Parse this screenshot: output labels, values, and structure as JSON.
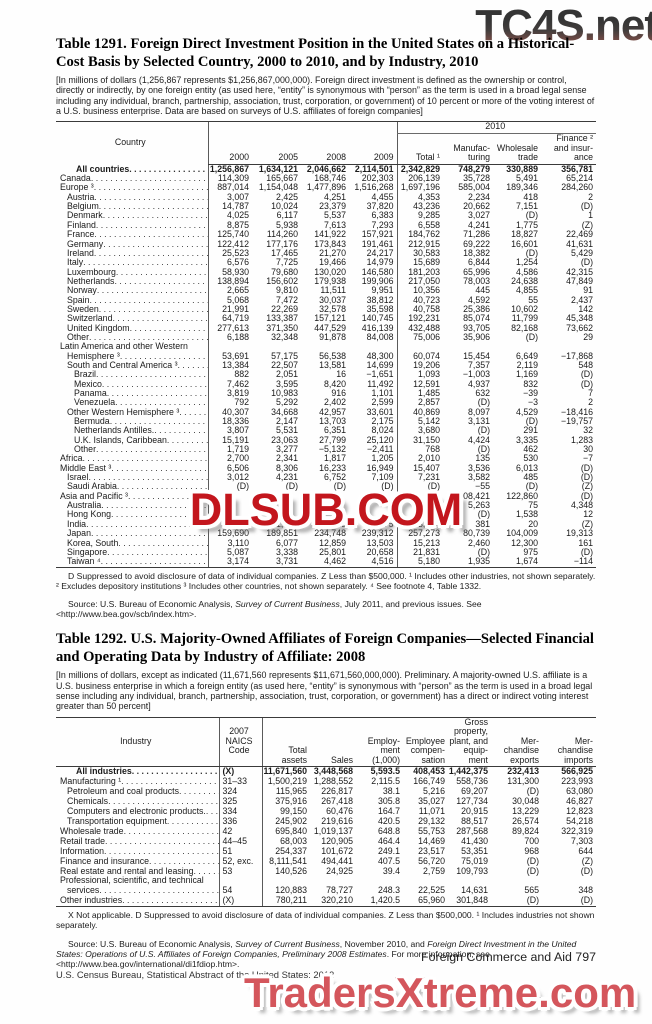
{
  "watermarks": {
    "top": "TC4S.net",
    "middle": "DLSUB.COM",
    "bottom": "TradersXtreme.com"
  },
  "page_footer": {
    "section": "Foreign Commerce and Aid  797",
    "census": "U.S. Census Bureau, Statistical Abstract of the United States: 2012"
  },
  "table1291": {
    "title": "Table 1291. Foreign Direct Investment Position in the United States on a Historical-Cost Basis by Selected Country, 2000 to 2010, and by Industry, 2010",
    "intro": "[In millions of dollars (1,256,867 represents $1,256,867,000,000). Foreign direct investment is defined as the ownership or control, directly or indirectly, by one foreign entity (as used here, “entity” is synonymous with “person” as the term is used in a broad legal sense including any individual, branch, partnership, association, trust, corporation, or government) of 10 percent or more of the voting interest of a U.S. business enterprise. Data are based on surveys of U.S. affiliates of foreign companies]",
    "headers": {
      "country": "Country",
      "group2010": "2010",
      "y2000": "2000",
      "y2005": "2005",
      "y2008": "2008",
      "y2009": "2009",
      "total": "Total ¹",
      "manufacturing": "Manufac-\nturing",
      "wholesale": "Wholesale\ntrade",
      "finance": "Finance ²\nand insur-\nance"
    },
    "rows": [
      {
        "label": "All countries",
        "indent": 1,
        "bold": true,
        "values": [
          "1,256,867",
          "1,634,121",
          "2,046,662",
          "2,114,501",
          "2,342,829",
          "748,279",
          "330,889",
          "356,781"
        ]
      },
      {
        "label": "Canada",
        "indent": 0,
        "values": [
          "114,309",
          "165,667",
          "168,746",
          "202,303",
          "206,139",
          "35,728",
          "5,491",
          "65,214"
        ]
      },
      {
        "label": "Europe ³",
        "indent": 0,
        "values": [
          "887,014",
          "1,154,048",
          "1,477,896",
          "1,516,268",
          "1,697,196",
          "585,004",
          "189,346",
          "284,260"
        ]
      },
      {
        "label": "Austria",
        "indent": 1,
        "values": [
          "3,007",
          "2,425",
          "4,251",
          "4,455",
          "4,353",
          "2,234",
          "418",
          "2"
        ]
      },
      {
        "label": "Belgium",
        "indent": 1,
        "values": [
          "14,787",
          "10,024",
          "23,379",
          "37,820",
          "43,236",
          "20,662",
          "7,151",
          "(D)"
        ]
      },
      {
        "label": "Denmark",
        "indent": 1,
        "values": [
          "4,025",
          "6,117",
          "5,537",
          "6,383",
          "9,285",
          "3,027",
          "(D)",
          "1"
        ]
      },
      {
        "label": "Finland",
        "indent": 1,
        "values": [
          "8,875",
          "5,938",
          "7,613",
          "7,293",
          "6,558",
          "4,241",
          "1,775",
          "(Z)"
        ]
      },
      {
        "label": "France",
        "indent": 1,
        "values": [
          "125,740",
          "114,260",
          "141,922",
          "157,921",
          "184,762",
          "71,286",
          "18,827",
          "22,469"
        ]
      },
      {
        "label": "Germany",
        "indent": 1,
        "values": [
          "122,412",
          "177,176",
          "173,843",
          "191,461",
          "212,915",
          "69,222",
          "16,601",
          "41,631"
        ]
      },
      {
        "label": "Ireland",
        "indent": 1,
        "values": [
          "25,523",
          "17,465",
          "21,270",
          "24,217",
          "30,583",
          "18,382",
          "(D)",
          "5,429"
        ]
      },
      {
        "label": "Italy",
        "indent": 1,
        "values": [
          "6,576",
          "7,725",
          "19,466",
          "14,979",
          "15,689",
          "6,844",
          "1,254",
          "(D)"
        ]
      },
      {
        "label": "Luxembourg",
        "indent": 1,
        "values": [
          "58,930",
          "79,680",
          "130,020",
          "146,580",
          "181,203",
          "65,996",
          "4,586",
          "42,315"
        ]
      },
      {
        "label": "Netherlands",
        "indent": 1,
        "values": [
          "138,894",
          "156,602",
          "179,938",
          "199,906",
          "217,050",
          "78,003",
          "24,638",
          "47,849"
        ]
      },
      {
        "label": "Norway",
        "indent": 1,
        "values": [
          "2,665",
          "9,810",
          "11,511",
          "9,951",
          "10,356",
          "445",
          "4,855",
          "91"
        ]
      },
      {
        "label": "Spain",
        "indent": 1,
        "values": [
          "5,068",
          "7,472",
          "30,037",
          "38,812",
          "40,723",
          "4,592",
          "55",
          "2,437"
        ]
      },
      {
        "label": "Sweden",
        "indent": 1,
        "values": [
          "21,991",
          "22,269",
          "32,578",
          "35,598",
          "40,758",
          "25,386",
          "10,602",
          "142"
        ]
      },
      {
        "label": "Switzerland",
        "indent": 1,
        "values": [
          "64,719",
          "133,387",
          "157,121",
          "140,745",
          "192,231",
          "85,074",
          "11,799",
          "45,348"
        ]
      },
      {
        "label": "United Kingdom",
        "indent": 1,
        "values": [
          "277,613",
          "371,350",
          "447,529",
          "416,139",
          "432,488",
          "93,705",
          "82,168",
          "73,662"
        ]
      },
      {
        "label": "Other",
        "indent": 1,
        "values": [
          "6,188",
          "32,348",
          "91,878",
          "84,008",
          "75,006",
          "35,906",
          "(D)",
          "29"
        ]
      },
      {
        "label": "Latin America and other Western",
        "indent": 0,
        "label_only": true,
        "values": [
          "",
          "",
          "",
          "",
          "",
          "",
          "",
          ""
        ]
      },
      {
        "label": "Hemisphere ³",
        "indent": 1,
        "values": [
          "53,691",
          "57,175",
          "56,538",
          "48,300",
          "60,074",
          "15,454",
          "6,649",
          "−17,868"
        ]
      },
      {
        "label": "South and Central America ³",
        "indent": 1,
        "values": [
          "13,384",
          "22,507",
          "13,581",
          "14,699",
          "19,206",
          "7,357",
          "2,119",
          "548"
        ]
      },
      {
        "label": "Brazil",
        "indent": 2,
        "values": [
          "882",
          "2,051",
          "16",
          "−1,651",
          "1,093",
          "−1,003",
          "1,169",
          "(D)"
        ]
      },
      {
        "label": "Mexico",
        "indent": 2,
        "values": [
          "7,462",
          "3,595",
          "8,420",
          "11,492",
          "12,591",
          "4,937",
          "832",
          "(D)"
        ]
      },
      {
        "label": "Panama",
        "indent": 2,
        "values": [
          "3,819",
          "10,983",
          "916",
          "1,101",
          "1,485",
          "632",
          "−39",
          "7"
        ]
      },
      {
        "label": "Venezuela",
        "indent": 2,
        "values": [
          "792",
          "5,292",
          "2,402",
          "2,599",
          "2,857",
          "(D)",
          "−3",
          "2"
        ]
      },
      {
        "label": "Other Western Hemisphere ³",
        "indent": 1,
        "values": [
          "40,307",
          "34,668",
          "42,957",
          "33,601",
          "40,869",
          "8,097",
          "4,529",
          "−18,416"
        ]
      },
      {
        "label": "Bermuda",
        "indent": 2,
        "values": [
          "18,336",
          "2,147",
          "13,703",
          "2,175",
          "5,142",
          "3,131",
          "(D)",
          "−19,757"
        ]
      },
      {
        "label": "Netherlands Antilles.",
        "indent": 2,
        "values": [
          "3,807",
          "5,531",
          "6,351",
          "8,024",
          "3,680",
          "(D)",
          "291",
          "32"
        ]
      },
      {
        "label": "U.K. Islands, Caribbean",
        "indent": 2,
        "values": [
          "15,191",
          "23,063",
          "27,799",
          "25,120",
          "31,150",
          "4,424",
          "3,335",
          "1,283"
        ]
      },
      {
        "label": "Other",
        "indent": 2,
        "values": [
          "1,719",
          "3,277",
          "−5,132",
          "−2,411",
          "768",
          "(D)",
          "462",
          "30"
        ]
      },
      {
        "label": "Africa",
        "indent": 0,
        "values": [
          "2,700",
          "2,341",
          "1,817",
          "1,205",
          "2,010",
          "135",
          "530",
          "−7"
        ]
      },
      {
        "label": "Middle East ³",
        "indent": 0,
        "values": [
          "6,506",
          "8,306",
          "16,233",
          "16,949",
          "15,407",
          "3,536",
          "6,013",
          "(D)"
        ]
      },
      {
        "label": "Israel",
        "indent": 1,
        "values": [
          "3,012",
          "4,231",
          "6,752",
          "7,109",
          "7,231",
          "3,582",
          "485",
          "(D)"
        ]
      },
      {
        "label": "Saudi Arabia",
        "indent": 1,
        "values": [
          "(D)",
          "(D)",
          "(D)",
          "(D)",
          "(D)",
          "−55",
          "(D)",
          "(Z)"
        ]
      },
      {
        "label": "Asia and Pacific ³",
        "indent": 0,
        "values": [
          "",
          "",
          "",
          "",
          "",
          "108,421",
          "122,860",
          "(D)"
        ]
      },
      {
        "label": "Australia",
        "indent": 1,
        "values": [
          "",
          "",
          "",
          "",
          "",
          "5,263",
          "75",
          "4,348"
        ]
      },
      {
        "label": "Hong Kong",
        "indent": 1,
        "values": [
          "",
          "",
          "",
          "",
          "",
          "(D)",
          "1,538",
          "12"
        ]
      },
      {
        "label": "India",
        "indent": 1,
        "values": [
          "",
          "1,437",
          "2,825",
          "2,375",
          "3,344",
          "381",
          "20",
          "(Z)"
        ]
      },
      {
        "label": "Japan",
        "indent": 1,
        "values": [
          "159,690",
          "189,851",
          "234,748",
          "239,312",
          "257,273",
          "80,739",
          "104,009",
          "19,313"
        ]
      },
      {
        "label": "Korea, South",
        "indent": 1,
        "values": [
          "3,110",
          "6,077",
          "12,859",
          "13,503",
          "15,213",
          "2,460",
          "12,300",
          "161"
        ]
      },
      {
        "label": "Singapore",
        "indent": 1,
        "values": [
          "5,087",
          "3,338",
          "25,801",
          "20,658",
          "21,831",
          "(D)",
          "975",
          "(D)"
        ]
      },
      {
        "label": "Taiwan ⁴",
        "indent": 1,
        "values": [
          "3,174",
          "3,731",
          "4,462",
          "4,516",
          "5,180",
          "1,935",
          "1,674",
          "−114"
        ]
      }
    ],
    "footnote": "D Suppressed to avoid disclosure of data of individual companies. Z Less than $500,000. ¹ Includes other industries, not shown separately. ² Excludes depository institutions ³ Includes other countries, not shown separately. ⁴ See footnote 4, Table 1332.",
    "source_segments": [
      {
        "t": "Source: U.S. Bureau of Economic Analysis, ",
        "i": false
      },
      {
        "t": "Survey of Current Business",
        "i": true
      },
      {
        "t": ", July 2011, and previous issues. See <http://www.bea.gov/scb/index.htm>.",
        "i": false
      }
    ]
  },
  "table1292": {
    "title": "Table 1292. U.S. Majority-Owned Affiliates of Foreign Companies—Selected Financial and Operating Data by Industry of Affiliate: 2008",
    "intro": "[In millions of dollars, except as indicated (11,671,560 represents $11,671,560,000,000). Preliminary. A majority-owned U.S. affiliate is a U.S. business enterprise in which a foreign entity (as used here, “entity” is synonymous with “person” as the term is used in a broad legal sense including any individual, branch, partnership, association, trust, corporation, or government) has a direct or indirect voting interest greater than 50 percent]",
    "headers": {
      "industry": "Industry",
      "naics": "2007\nNAICS\nCode",
      "total_assets": "Total\nassets",
      "sales": "Sales",
      "employment": "Employ-\nment\n(1,000)",
      "compensation": "Employee\ncompen-\nsation",
      "gross_ppe": "Gross\nproperty,\nplant, and\nequip-\nment",
      "merch_exports": "Mer-\nchandise\nexports",
      "merch_imports": "Mer-\nchandise\nimports"
    },
    "rows": [
      {
        "label": "All industries",
        "indent": 1,
        "bold": true,
        "values": [
          "(X)",
          "11,671,560",
          "3,448,568",
          "5,593.5",
          "408,453",
          "1,442,375",
          "232,413",
          "566,925"
        ]
      },
      {
        "label": "Manufacturing ¹",
        "indent": 0,
        "values": [
          "31–33",
          "1,500,219",
          "1,288,552",
          "2,115.5",
          "166,749",
          "558,736",
          "131,300",
          "223,993"
        ]
      },
      {
        "label": "Petroleum and coal products",
        "indent": 1,
        "values": [
          "324",
          "115,965",
          "226,817",
          "38.1",
          "5,216",
          "69,207",
          "(D)",
          "63,080"
        ]
      },
      {
        "label": "Chemicals",
        "indent": 1,
        "values": [
          "325",
          "375,916",
          "267,418",
          "305.8",
          "35,027",
          "127,734",
          "30,048",
          "46,827"
        ]
      },
      {
        "label": "Computers and electronic products.",
        "indent": 1,
        "values": [
          "334",
          "99,150",
          "60,476",
          "164.7",
          "11,071",
          "20,915",
          "13,229",
          "12,823"
        ]
      },
      {
        "label": "Transportation equipment",
        "indent": 1,
        "values": [
          "336",
          "245,902",
          "219,616",
          "420.5",
          "29,132",
          "88,517",
          "26,574",
          "54,218"
        ]
      },
      {
        "label": "Wholesale trade",
        "indent": 0,
        "values": [
          "42",
          "695,840",
          "1,019,137",
          "648.8",
          "55,753",
          "287,568",
          "89,824",
          "322,319"
        ]
      },
      {
        "label": "Retail trade",
        "indent": 0,
        "values": [
          "44–45",
          "68,003",
          "120,905",
          "464.4",
          "14,469",
          "41,430",
          "700",
          "7,303"
        ]
      },
      {
        "label": "Information",
        "indent": 0,
        "values": [
          "51",
          "254,337",
          "101,672",
          "249.1",
          "23,517",
          "53,351",
          "968",
          "644"
        ]
      },
      {
        "label": "Finance and insurance",
        "indent": 0,
        "values": [
          "52, exc.",
          "8,111,541",
          "494,441",
          "407.5",
          "56,720",
          "75,019",
          "(D)",
          "(Z)"
        ]
      },
      {
        "label": "Real estate and rental and leasing",
        "indent": 0,
        "values": [
          "53",
          "140,526",
          "24,925",
          "39.4",
          "2,759",
          "109,793",
          "(D)",
          "(D)"
        ]
      },
      {
        "label": "Professional, scientific, and technical",
        "indent": 0,
        "label_only": true,
        "values": [
          "",
          "",
          "",
          "",
          "",
          "",
          "",
          ""
        ]
      },
      {
        "label": "services",
        "indent": 1,
        "values": [
          "54",
          "120,883",
          "78,727",
          "248.3",
          "22,525",
          "14,631",
          "565",
          "348"
        ]
      },
      {
        "label": "Other industries",
        "indent": 0,
        "values": [
          "(X)",
          "780,211",
          "320,210",
          "1,420.5",
          "65,960",
          "301,848",
          "(D)",
          "(D)"
        ]
      }
    ],
    "footnote": "X Not applicable. D Suppressed to avoid disclosure of data of individual companies. Z Less than $500,000. ¹ Includes industries not shown separately.",
    "source_segments": [
      {
        "t": "Source: U.S. Bureau of Economic Analysis, ",
        "i": false
      },
      {
        "t": "Survey of Current Business",
        "i": true
      },
      {
        "t": ", November 2010, and ",
        "i": false
      },
      {
        "t": "Foreign Direct Investment in the United States: Operations of U.S. Affiliates of Foreign Companies, Preliminary 2008 Estimates",
        "i": true
      },
      {
        "t": ". For more information, see <http://www.bea.gov/international/di1fdiop.htm>.",
        "i": false
      }
    ]
  }
}
